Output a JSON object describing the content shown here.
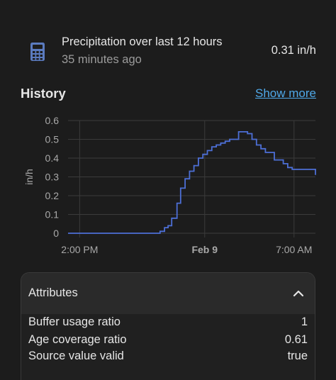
{
  "sensor": {
    "name": "Precipitation over last 12 hours",
    "last_changed": "35 minutes ago",
    "state": "0.31 in/h",
    "icon": "calculator-icon"
  },
  "history": {
    "title": "History",
    "show_more": "Show more"
  },
  "chart_data": {
    "type": "line",
    "ylabel": "in/h",
    "ylim": [
      0,
      0.6
    ],
    "y_ticks": [
      "0",
      "0.1",
      "0.2",
      "0.3",
      "0.4",
      "0.5",
      "0.6"
    ],
    "x_ticks": [
      "2:00 PM",
      "Feb 9",
      "7:00 AM"
    ],
    "grid": true,
    "line_color": "#4d6fd6",
    "series": [
      {
        "x_hours": [
          0,
          9.8,
          10.3,
          10.8,
          11.2,
          11.6,
          12.2,
          12.6,
          13.1,
          13.6,
          14.1,
          14.6,
          15.1,
          15.6,
          16.1,
          16.6,
          17.1,
          17.6,
          18.1,
          18.6,
          19.1,
          20.1,
          20.6,
          21.1,
          21.6,
          22.1,
          23.1,
          24.1,
          24.6,
          25.1,
          27.7
        ],
        "values": [
          0,
          0,
          0.01,
          0.03,
          0.04,
          0.08,
          0.16,
          0.24,
          0.29,
          0.33,
          0.36,
          0.4,
          0.42,
          0.44,
          0.46,
          0.47,
          0.48,
          0.49,
          0.5,
          0.5,
          0.54,
          0.53,
          0.5,
          0.47,
          0.45,
          0.43,
          0.39,
          0.37,
          0.35,
          0.34,
          0.31
        ]
      }
    ]
  },
  "attributes": {
    "title": "Attributes",
    "rows": [
      {
        "key": "Buffer usage ratio",
        "value": "1"
      },
      {
        "key": "Age coverage ratio",
        "value": "0.61"
      },
      {
        "key": "Source value valid",
        "value": "true"
      }
    ]
  },
  "colors": {
    "background": "#1c1c1c",
    "accent_link": "#4fa8e8",
    "icon": "#5b7bbf"
  }
}
